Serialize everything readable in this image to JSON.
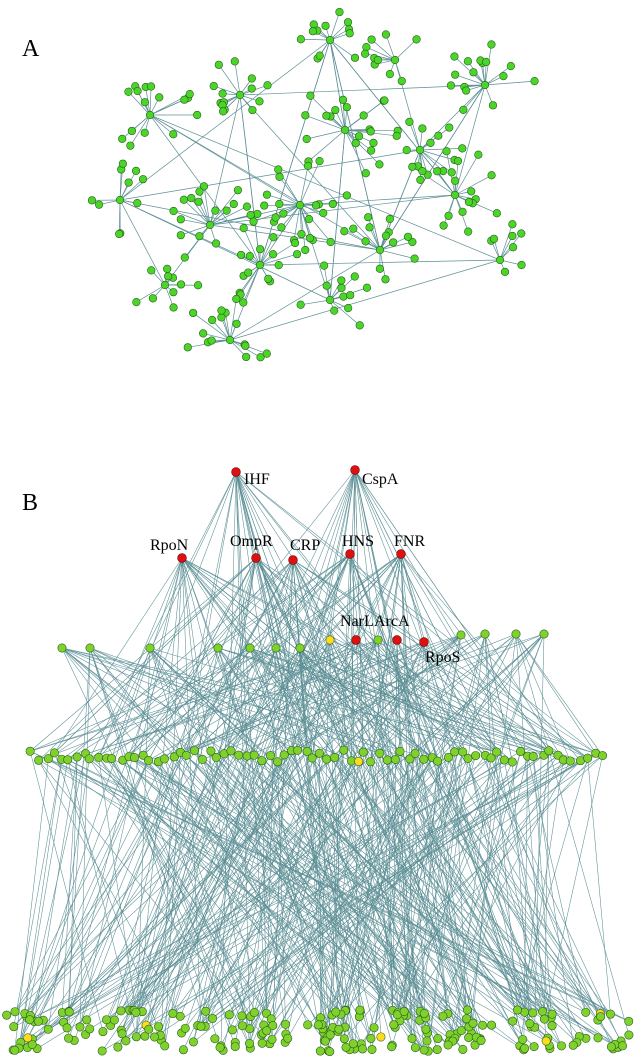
{
  "panels": {
    "a": {
      "label": "A"
    },
    "b": {
      "label": "B"
    }
  },
  "colors": {
    "edge": "#5c8f95",
    "node_gene": "#7fd22b",
    "node_a": "#49d629",
    "node_regulator": "#e01010",
    "node_highlight": "#ffdb1f",
    "node_stroke": "#2b5a1a"
  },
  "regulators": [
    {
      "name": "IHF",
      "level": 0
    },
    {
      "name": "CspA",
      "level": 0
    },
    {
      "name": "RpoN",
      "level": 1
    },
    {
      "name": "OmpR",
      "level": 1
    },
    {
      "name": "CRP",
      "level": 1
    },
    {
      "name": "HNS",
      "level": 1
    },
    {
      "name": "FNR",
      "level": 1
    },
    {
      "name": "NarL",
      "level": 2
    },
    {
      "name": "ArcA",
      "level": 2
    },
    {
      "name": "RpoS",
      "level": 2
    }
  ]
}
